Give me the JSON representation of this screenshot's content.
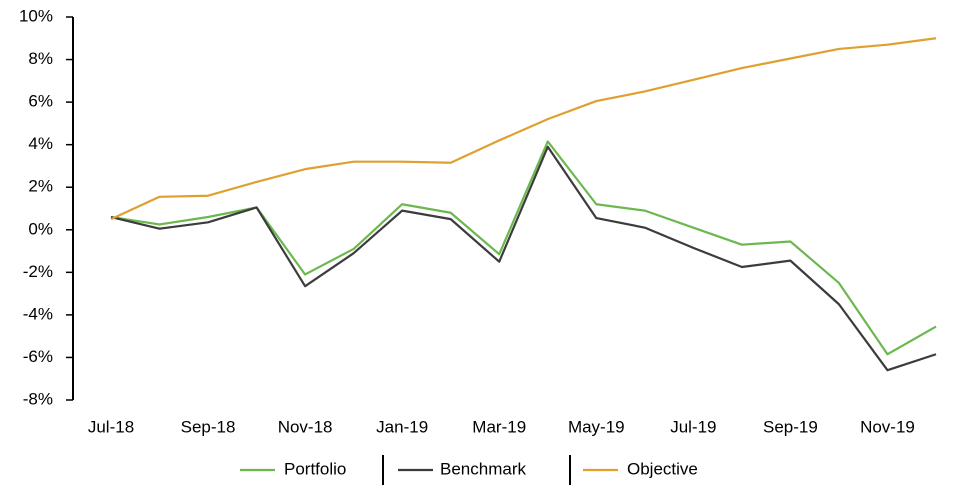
{
  "chart_data": {
    "type": "line",
    "categories": [
      "Jul-18",
      null,
      "Sep-18",
      null,
      "Nov-18",
      null,
      "Jan-19",
      null,
      "Mar-19",
      null,
      "May-19",
      null,
      "Jul-19",
      null,
      "Sep-19",
      null,
      "Nov-19",
      null
    ],
    "series": [
      {
        "name": "Portfolio",
        "color": "#6cb84e",
        "values": [
          0.6,
          0.25,
          0.6,
          1.05,
          -2.1,
          -0.9,
          1.2,
          0.8,
          -1.15,
          4.15,
          1.2,
          0.9,
          0.1,
          -0.7,
          -0.55,
          -2.5,
          -5.85,
          -4.55
        ]
      },
      {
        "name": "Benchmark",
        "color": "#3c3c3c",
        "values": [
          0.6,
          0.05,
          0.35,
          1.05,
          -2.65,
          -1.1,
          0.9,
          0.5,
          -1.5,
          3.9,
          0.55,
          0.1,
          -0.85,
          -1.75,
          -1.45,
          -3.5,
          -6.6,
          -5.85
        ]
      },
      {
        "name": "Objective",
        "color": "#e0a030",
        "values": [
          0.5,
          1.55,
          1.6,
          2.25,
          2.85,
          3.2,
          3.2,
          3.15,
          4.2,
          5.2,
          6.05,
          6.5,
          7.05,
          7.6,
          8.05,
          8.5,
          8.7,
          9.0
        ]
      }
    ],
    "ylim": [
      -8,
      10
    ],
    "yticks": [
      {
        "value": -8,
        "label": "-8%"
      },
      {
        "value": -6,
        "label": "-6%"
      },
      {
        "value": -4,
        "label": "-4%"
      },
      {
        "value": -2,
        "label": "-2%"
      },
      {
        "value": 0,
        "label": "0%"
      },
      {
        "value": 2,
        "label": "2%"
      },
      {
        "value": 4,
        "label": "4%"
      },
      {
        "value": 6,
        "label": "6%"
      },
      {
        "value": 8,
        "label": "8%"
      },
      {
        "value": 10,
        "label": "10%"
      }
    ],
    "grid": false,
    "legend": "bottom"
  }
}
